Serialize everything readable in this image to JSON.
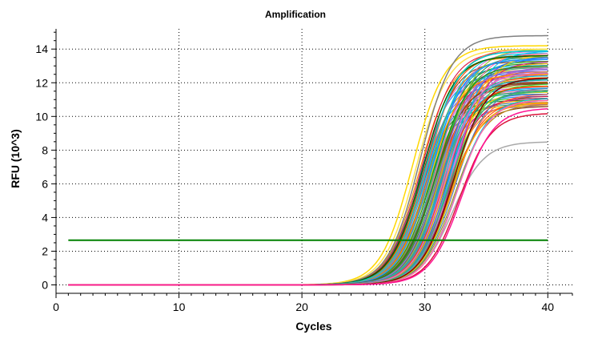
{
  "chart_data": {
    "type": "line",
    "title": "Amplification",
    "xlabel": "Cycles",
    "ylabel": "RFU (10^3)",
    "xlim": [
      0,
      42
    ],
    "ylim": [
      -0.5,
      15.2
    ],
    "x_ticks": [
      0,
      10,
      20,
      30,
      40
    ],
    "y_ticks": [
      0,
      2,
      4,
      6,
      8,
      10,
      12,
      14
    ],
    "grid": "dotted",
    "legend": "none",
    "cycles_range": [
      1,
      40
    ],
    "threshold": {
      "y": 2.65,
      "color": "#008000"
    },
    "curve_model": "sigmoid: y = plateau / (1 + exp(-(cycle - midpoint) / slope))",
    "series_summary": {
      "count": 94,
      "midpoint_range": [
        29.0,
        33.0
      ],
      "plateau_range": [
        8.5,
        14.8
      ],
      "slope": 1.3
    },
    "series": [
      {
        "name": "",
        "color": "#FFD700",
        "midpoint": 29.0,
        "plateau": 14.2,
        "slope": 1.3
      },
      {
        "name": "",
        "color": "#FFE34D",
        "midpoint": 29.3,
        "plateau": 14.0,
        "slope": 1.3
      },
      {
        "name": "",
        "color": "#808080",
        "midpoint": 29.6,
        "plateau": 14.8,
        "slope": 1.3
      },
      {
        "name": "",
        "color": "#006400",
        "midpoint": 29.8,
        "plateau": 13.6,
        "slope": 1.3
      },
      {
        "name": "",
        "color": "#00CED1",
        "midpoint": 30.1,
        "plateau": 13.9,
        "slope": 1.3
      },
      {
        "name": "",
        "color": "#FF8C00",
        "midpoint": 30.3,
        "plateau": 12.5,
        "slope": 1.3
      },
      {
        "name": "",
        "color": "#1E90FF",
        "midpoint": 30.5,
        "plateau": 13.4,
        "slope": 1.3
      },
      {
        "name": "",
        "color": "#8B4513",
        "midpoint": 30.7,
        "plateau": 12.0,
        "slope": 1.3
      },
      {
        "name": "",
        "color": "#228B22",
        "midpoint": 30.9,
        "plateau": 13.0,
        "slope": 1.3
      },
      {
        "name": "",
        "color": "#9370DB",
        "midpoint": 31.1,
        "plateau": 12.8,
        "slope": 1.3
      },
      {
        "name": "",
        "color": "#20B2AA",
        "midpoint": 31.3,
        "plateau": 12.2,
        "slope": 1.3
      },
      {
        "name": "",
        "color": "#FF4500",
        "midpoint": 31.5,
        "plateau": 11.8,
        "slope": 1.3
      },
      {
        "name": "",
        "color": "#DA70D6",
        "midpoint": 31.7,
        "plateau": 12.6,
        "slope": 1.3
      },
      {
        "name": "",
        "color": "#3CB371",
        "midpoint": 31.9,
        "plateau": 11.5,
        "slope": 1.3
      },
      {
        "name": "",
        "color": "#FFA500",
        "midpoint": 32.1,
        "plateau": 10.8,
        "slope": 1.3
      },
      {
        "name": "",
        "color": "#A9A9A9",
        "midpoint": 32.2,
        "plateau": 8.5,
        "slope": 1.3
      },
      {
        "name": "",
        "color": "#800000",
        "midpoint": 32.3,
        "plateau": 12.3,
        "slope": 1.3
      },
      {
        "name": "",
        "color": "#FF69B4",
        "midpoint": 32.6,
        "plateau": 11.0,
        "slope": 1.3
      },
      {
        "name": "",
        "color": "#DC143C",
        "midpoint": 32.8,
        "plateau": 10.2,
        "slope": 1.3
      },
      {
        "name": "",
        "color": "#FF1493",
        "midpoint": 33.0,
        "plateau": 10.5,
        "slope": 1.3
      }
    ]
  }
}
